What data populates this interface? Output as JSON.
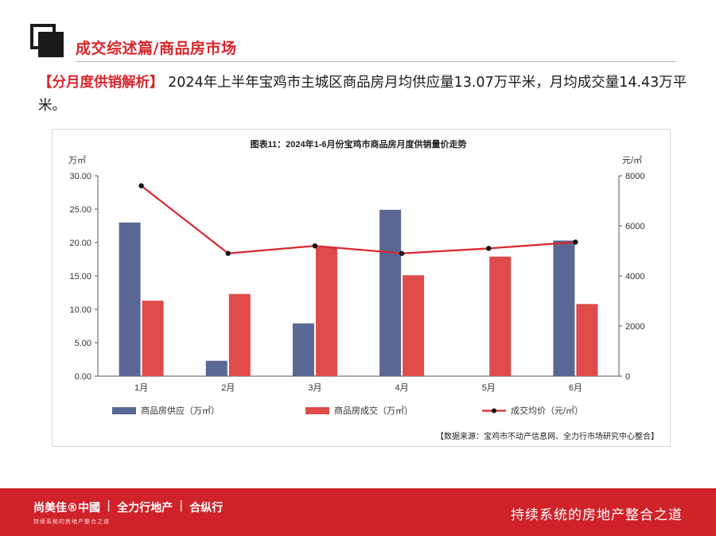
{
  "header": {
    "section_title": "成交综述篇/商品房市场"
  },
  "intro": {
    "tag": "【分月度供销解析】",
    "text": " 2024年上半年宝鸡市主城区商品房月均供应量13.07万平米，月均成交量14.43万平米。"
  },
  "chart_data": {
    "type": "bar",
    "title": "图表11：2024年1-6月份宝鸡市商品房月度供销量价走势",
    "categories": [
      "1月",
      "2月",
      "3月",
      "4月",
      "5月",
      "6月"
    ],
    "series": [
      {
        "name": "商品房供应（万㎡）",
        "type": "bar",
        "axis": "left",
        "color": "#5a6794",
        "values": [
          23.0,
          2.3,
          7.9,
          24.9,
          0,
          20.3
        ]
      },
      {
        "name": "商品房成交（万㎡）",
        "type": "bar",
        "axis": "left",
        "color": "#df4a4a",
        "values": [
          11.3,
          12.3,
          19.3,
          15.1,
          17.9,
          10.8
        ]
      },
      {
        "name": "成交均价（元/㎡）",
        "type": "line",
        "axis": "right",
        "color": "#d9262c",
        "marker_color": "#111111",
        "values": [
          7600,
          4900,
          5200,
          4900,
          5100,
          5350
        ]
      }
    ],
    "left_axis": {
      "unit": "万㎡",
      "ylim": [
        0,
        30
      ],
      "ticks": [
        "0.00",
        "5.00",
        "10.00",
        "15.00",
        "20.00",
        "25.00",
        "30.00"
      ]
    },
    "right_axis": {
      "unit": "元/㎡",
      "ylim": [
        0,
        8000
      ],
      "ticks": [
        "0",
        "2000",
        "4000",
        "6000",
        "8000"
      ]
    },
    "legend_position": "bottom",
    "grid": false,
    "source_note": "【数据来源：宝鸡市不动产信息网、全力行市场研究中心整合】"
  },
  "footer": {
    "brand_1": "尚美佳®中國",
    "brand_2": "全力行地产",
    "brand_3": "合纵行",
    "sub_text": "持续系统的房地产整合之道",
    "slogan": "持续系统的房地产整合之道"
  },
  "colors": {
    "accent": "#d9262c",
    "footer_bg": "#cf2229",
    "supply_bar": "#5a6794",
    "deal_bar": "#df4a4a"
  }
}
